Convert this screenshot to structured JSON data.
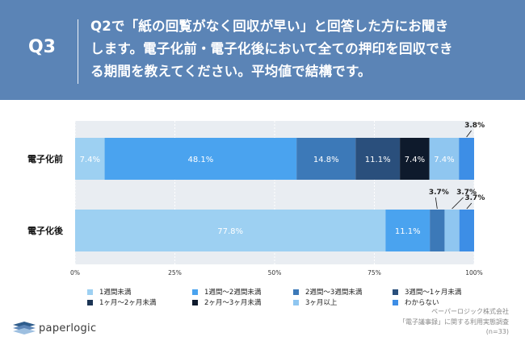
{
  "header": {
    "q_label": "Q3",
    "question_lines": [
      "Q2で「紙の回覧がなく回収が早い」と回答した方にお聞き",
      "します。電子化前・電子化後において全ての押印を回収でき",
      "る期間を教えてください。平均値で結構です。"
    ]
  },
  "chart_data": {
    "type": "bar",
    "orientation": "horizontal-stacked",
    "categories": [
      "電子化前",
      "電子化後"
    ],
    "xlim": [
      0,
      100
    ],
    "x_ticks": [
      "0%",
      "25%",
      "50%",
      "75%",
      "100%"
    ],
    "series": [
      {
        "name": "1週間未満",
        "color": "#9dd0f2",
        "values": [
          7.4,
          77.8
        ]
      },
      {
        "name": "1週間〜2週間未満",
        "color": "#4aa3ef",
        "values": [
          48.1,
          11.1
        ]
      },
      {
        "name": "2週間〜3週間未満",
        "color": "#3c79b8",
        "values": [
          14.8,
          3.7
        ]
      },
      {
        "name": "3週間〜1ヶ月未満",
        "color": "#2a4f7c",
        "values": [
          11.1,
          0
        ]
      },
      {
        "name": "1ヶ月〜2ヶ月未満",
        "color": "#1b3454",
        "values": [
          0,
          0
        ]
      },
      {
        "name": "2ヶ月〜3ヶ月未満",
        "color": "#0e1a2c",
        "values": [
          7.4,
          0
        ]
      },
      {
        "name": "3ヶ月以上",
        "color": "#8fc6f0",
        "values": [
          7.4,
          3.7
        ]
      },
      {
        "name": "わからない",
        "color": "#3d8ee6",
        "values": [
          3.8,
          3.7
        ]
      }
    ],
    "data_labels": [
      [
        "7.4%",
        "48.1%",
        "14.8%",
        "11.1%",
        "",
        "7.4%",
        "7.4%",
        "3.8%"
      ],
      [
        "77.8%",
        "11.1%",
        "3.7%",
        "",
        "",
        "",
        "3.7%",
        "3.7%"
      ]
    ]
  },
  "footer": {
    "logo_text": "paperlogic",
    "source_lines": [
      "ペーパーロジック株式会社",
      "「電子議事録」に関する利用実態調査",
      "(n=33)"
    ]
  }
}
